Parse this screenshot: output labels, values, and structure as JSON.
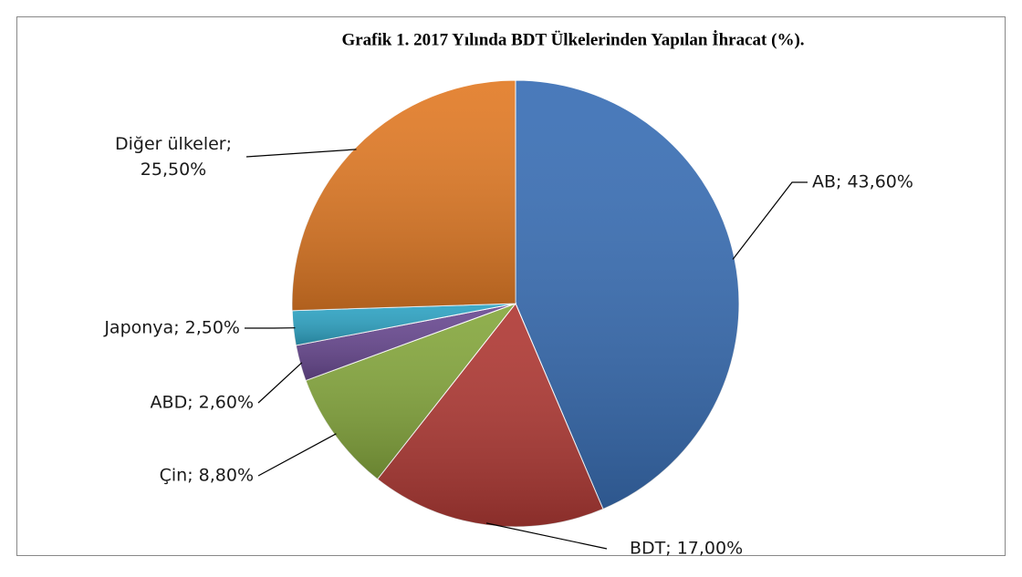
{
  "chart_data": {
    "type": "pie",
    "title": "Grafik  1. 2017 Yılında BDT Ülkelerinden Yapılan İhracat (%).",
    "categories": [
      "AB",
      "BDT",
      "Çin",
      "ABD",
      "Japonya",
      "Diğer ülkeler"
    ],
    "values": [
      43.6,
      17.0,
      8.8,
      2.6,
      2.5,
      25.5
    ],
    "value_labels": [
      "AB; 43,60%",
      "BDT; 17,00%",
      "Çin; 8,80%",
      "ABD; 2,60%",
      "Japonya; 2,50%",
      "Diğer ülkeler; 25,50%"
    ],
    "colors": [
      "#3a6fb5",
      "#b03a35",
      "#86a83e",
      "#6a4a92",
      "#2fa4c4",
      "#e27b26"
    ]
  }
}
